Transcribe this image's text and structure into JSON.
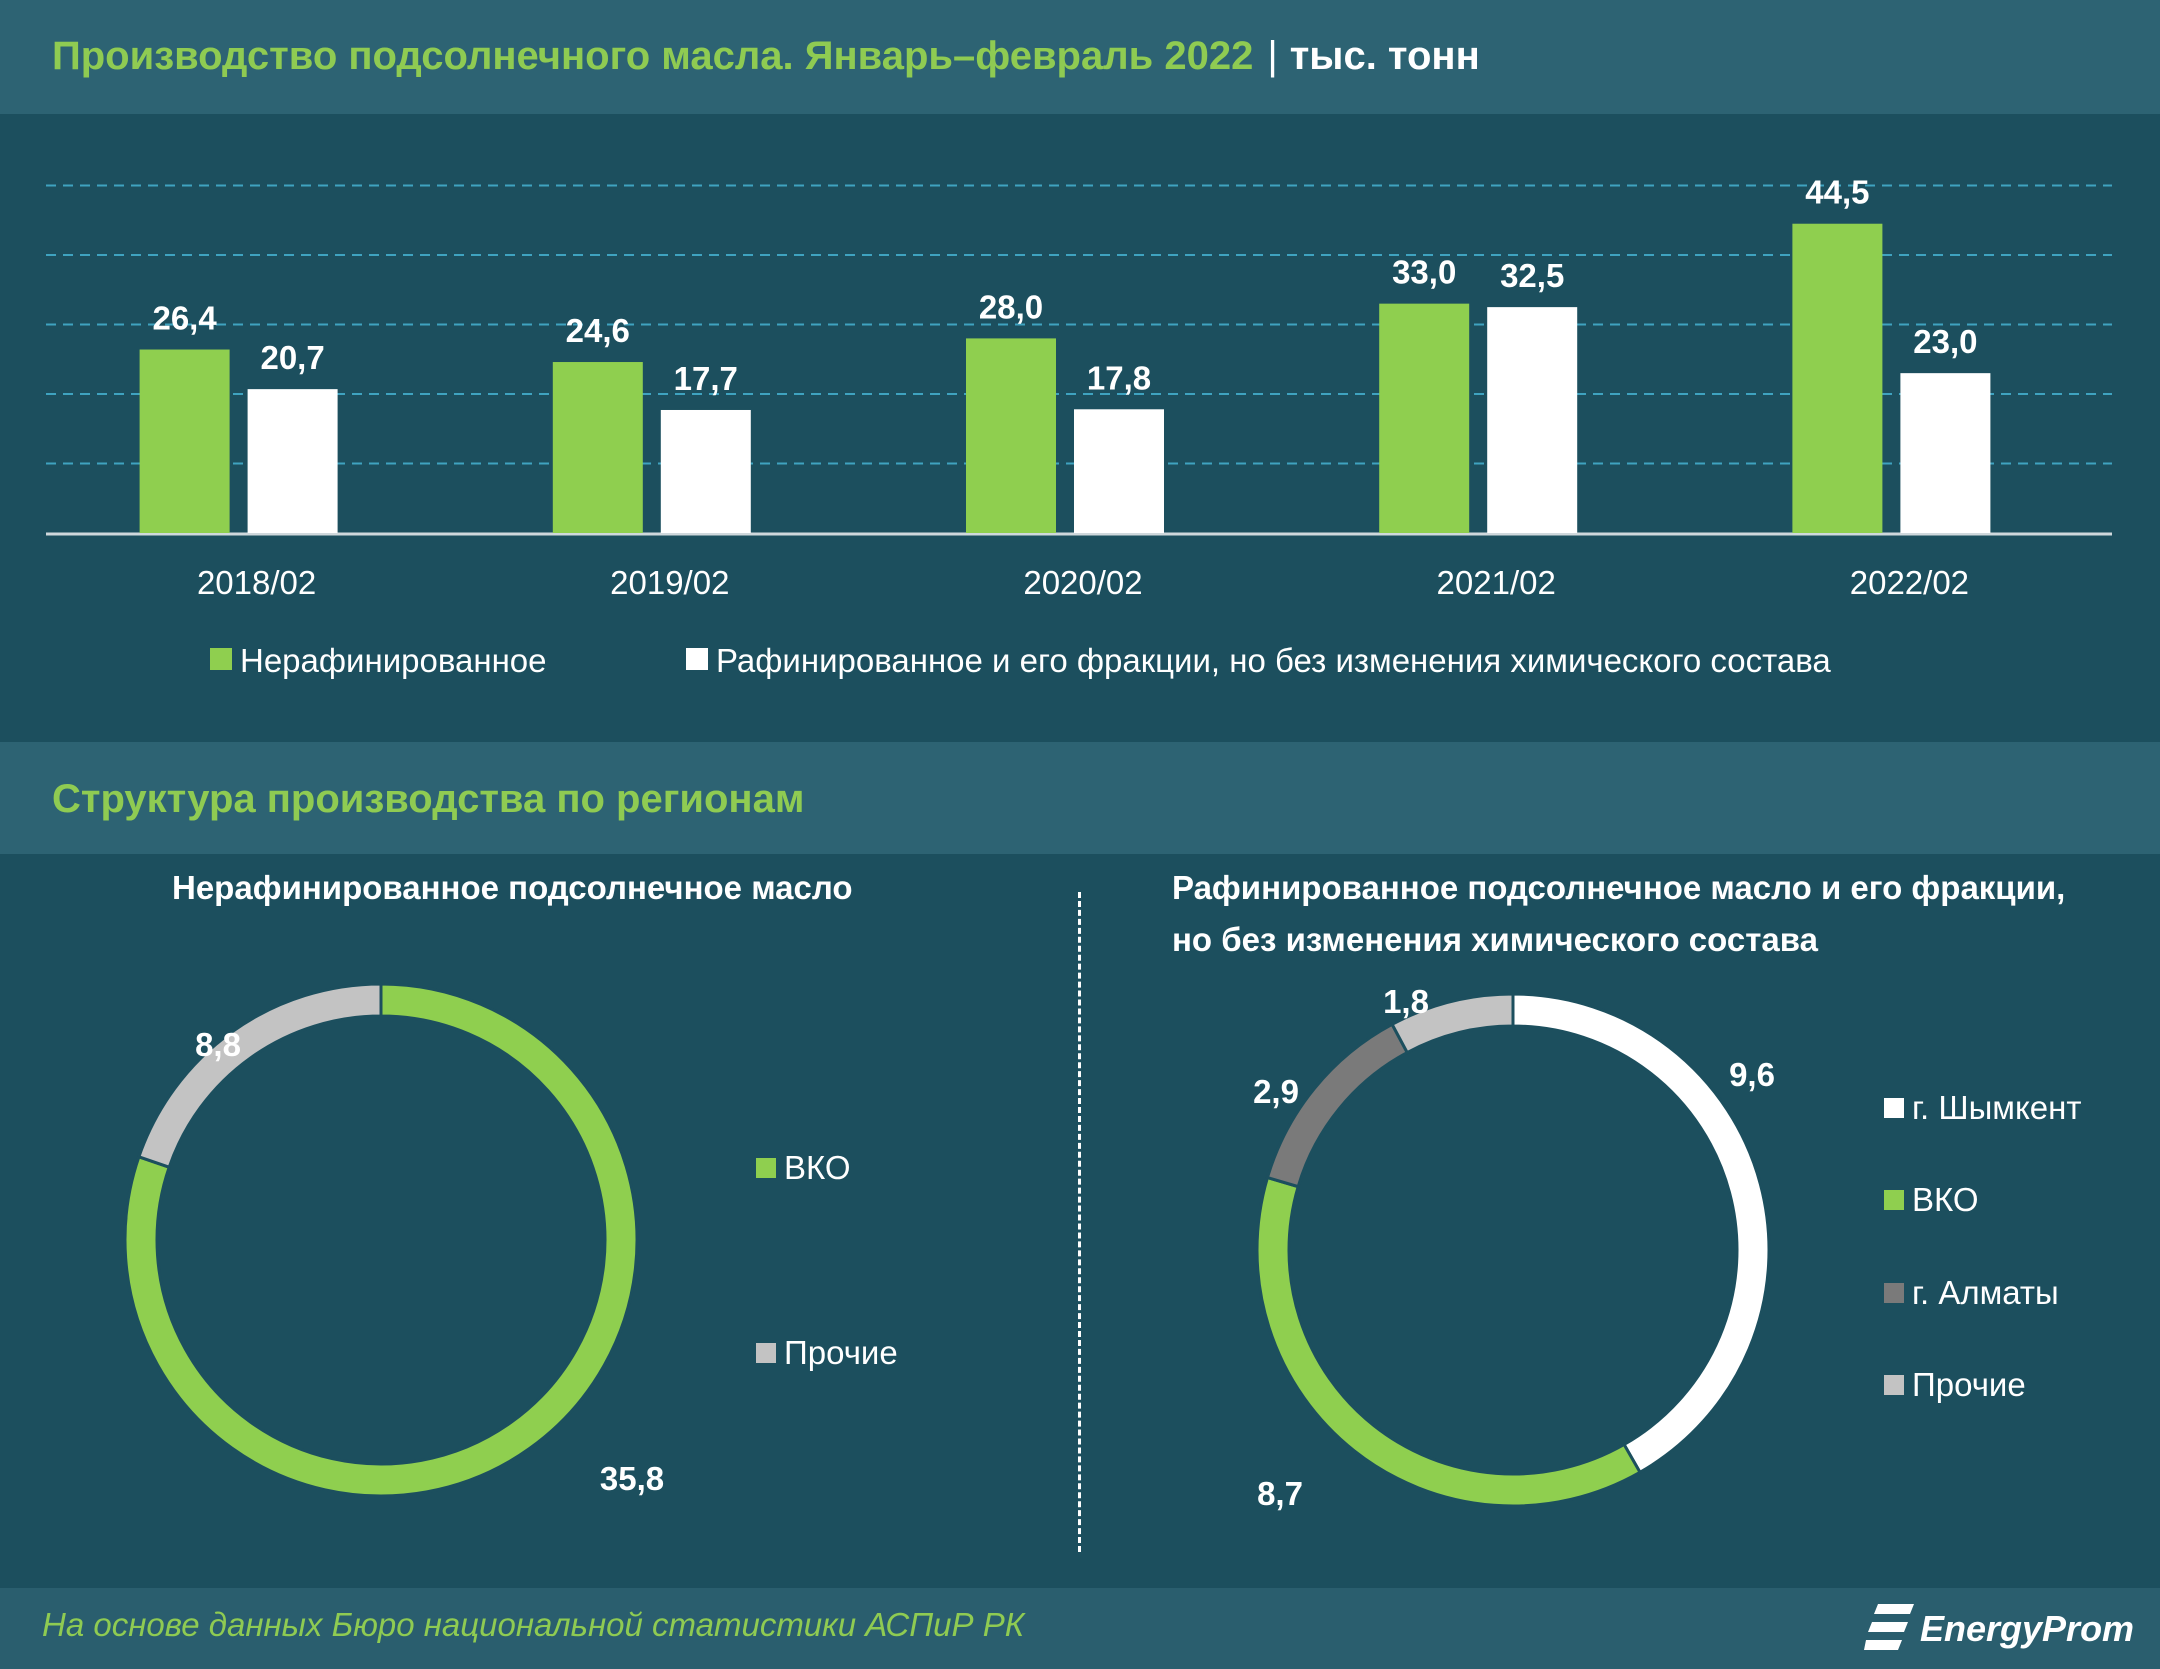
{
  "header": {
    "title": "Производство подсолнечного масла. Январь–февраль 2022",
    "separator": "|",
    "unit": "тыс. тонн"
  },
  "section": {
    "title": "Структура производства по регионам"
  },
  "colors": {
    "green": "#8fcf4f",
    "white": "#ffffff",
    "light_gray": "#c3c3c3",
    "dark_gray": "#7a7a7a",
    "accent_text": "#8fcb52",
    "background": "#1c4f5e",
    "band": "#2d6373",
    "grid": "#3fa3c0"
  },
  "chart_data": [
    {
      "type": "bar",
      "categories": [
        "2018/02",
        "2019/02",
        "2020/02",
        "2021/02",
        "2022/02"
      ],
      "series": [
        {
          "name": "Нерафинированное",
          "color": "#8fcf4f",
          "values": [
            26.4,
            24.6,
            28.0,
            33.0,
            44.5
          ],
          "labels": [
            "26,4",
            "24,6",
            "28,0",
            "33,0",
            "44,5"
          ]
        },
        {
          "name": "Рафинированное и его фракции, но без изменения химического состава",
          "color": "#ffffff",
          "values": [
            20.7,
            17.7,
            17.8,
            32.5,
            23.0
          ],
          "labels": [
            "20,7",
            "17,7",
            "17,8",
            "32,5",
            "23,0"
          ]
        }
      ],
      "ylim": [
        0,
        50
      ],
      "grid": true,
      "legend": "bottom"
    },
    {
      "type": "pie",
      "title": "Нерафинированное подсолнечное масло",
      "slices": [
        {
          "name": "ВКО",
          "value": 35.8,
          "label": "35,8",
          "color": "#8fcf4f"
        },
        {
          "name": "Прочие",
          "value": 8.8,
          "label": "8,8",
          "color": "#c3c3c3"
        }
      ],
      "legend": "right"
    },
    {
      "type": "pie",
      "title": "Рафинированное подсолнечное масло и его фракции, но без изменения химического состава",
      "slices": [
        {
          "name": "г. Шымкент",
          "value": 9.6,
          "label": "9,6",
          "color": "#ffffff"
        },
        {
          "name": "ВКО",
          "value": 8.7,
          "label": "8,7",
          "color": "#8fcf4f"
        },
        {
          "name": "г. Алматы",
          "value": 2.9,
          "label": "2,9",
          "color": "#7a7a7a"
        },
        {
          "name": "Прочие",
          "value": 1.8,
          "label": "1,8",
          "color": "#c3c3c3"
        }
      ],
      "legend": "right"
    }
  ],
  "footer": {
    "note": "На основе данных Бюро национальной статистики АСПиР РК",
    "brand": "EnergyProm"
  }
}
